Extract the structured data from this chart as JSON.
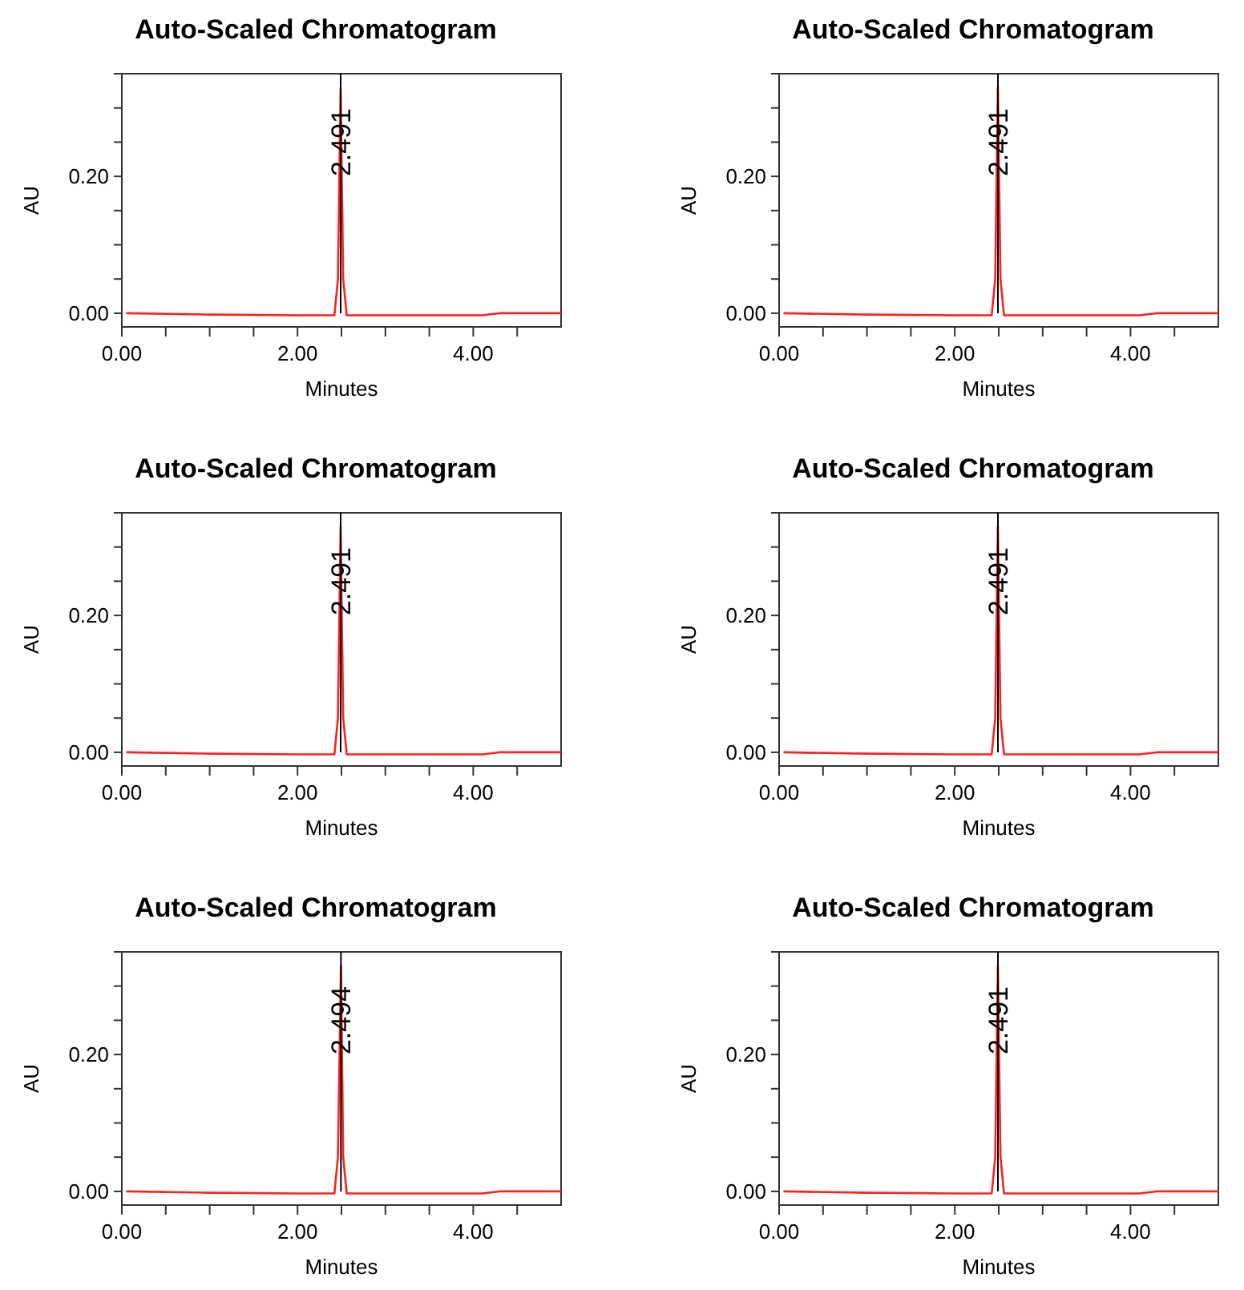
{
  "chart_data": [
    {
      "type": "line",
      "title": "Auto-Scaled Chromatogram",
      "xlabel": "Minutes",
      "ylabel": "AU",
      "x": [
        0.05,
        1.0,
        2.0,
        2.42,
        2.46,
        2.49,
        2.52,
        2.56,
        3.0,
        4.1,
        4.3,
        5.0
      ],
      "series": [
        {
          "color": "#ff2020",
          "values": [
            0,
            -0.002,
            -0.003,
            -0.003,
            0.05,
            0.33,
            0.05,
            -0.003,
            -0.003,
            -0.003,
            0,
            0
          ]
        }
      ],
      "xlim": [
        0,
        5
      ],
      "ylim": [
        -0.02,
        0.35
      ],
      "xticks": [
        {
          "value": 0,
          "label": "0.00"
        },
        {
          "value": 0.5,
          "label": null
        },
        {
          "value": 1,
          "label": null
        },
        {
          "value": 1.5,
          "label": null
        },
        {
          "value": 2,
          "label": "2.00"
        },
        {
          "value": 2.5,
          "label": null
        },
        {
          "value": 3,
          "label": null
        },
        {
          "value": 3.5,
          "label": null
        },
        {
          "value": 4,
          "label": "4.00"
        },
        {
          "value": 4.5,
          "label": null
        }
      ],
      "yticks": [
        {
          "value": 0,
          "label": "0.00"
        },
        {
          "value": 0.05,
          "label": null
        },
        {
          "value": 0.1,
          "label": null
        },
        {
          "value": 0.15,
          "label": null
        },
        {
          "value": 0.2,
          "label": "0.20"
        },
        {
          "value": 0.25,
          "label": null
        },
        {
          "value": 0.3,
          "label": null
        },
        {
          "value": 0.35,
          "label": null
        }
      ],
      "ref_lines": [
        {
          "axis": "x",
          "value": 2.491,
          "label": "2.491",
          "color": "#000000"
        }
      ]
    },
    {
      "type": "line",
      "title": "Auto-Scaled Chromatogram",
      "xlabel": "Minutes",
      "ylabel": "AU",
      "x": [
        0.05,
        1.0,
        2.0,
        2.42,
        2.46,
        2.49,
        2.52,
        2.56,
        3.0,
        4.1,
        4.3,
        5.0
      ],
      "series": [
        {
          "color": "#ff2020",
          "values": [
            0,
            -0.002,
            -0.003,
            -0.003,
            0.05,
            0.33,
            0.05,
            -0.003,
            -0.003,
            -0.003,
            0,
            0
          ]
        }
      ],
      "xlim": [
        0,
        5
      ],
      "ylim": [
        -0.02,
        0.35
      ],
      "xticks": [
        {
          "value": 0,
          "label": "0.00"
        },
        {
          "value": 0.5,
          "label": null
        },
        {
          "value": 1,
          "label": null
        },
        {
          "value": 1.5,
          "label": null
        },
        {
          "value": 2,
          "label": "2.00"
        },
        {
          "value": 2.5,
          "label": null
        },
        {
          "value": 3,
          "label": null
        },
        {
          "value": 3.5,
          "label": null
        },
        {
          "value": 4,
          "label": "4.00"
        },
        {
          "value": 4.5,
          "label": null
        }
      ],
      "yticks": [
        {
          "value": 0,
          "label": "0.00"
        },
        {
          "value": 0.05,
          "label": null
        },
        {
          "value": 0.1,
          "label": null
        },
        {
          "value": 0.15,
          "label": null
        },
        {
          "value": 0.2,
          "label": "0.20"
        },
        {
          "value": 0.25,
          "label": null
        },
        {
          "value": 0.3,
          "label": null
        },
        {
          "value": 0.35,
          "label": null
        }
      ],
      "ref_lines": [
        {
          "axis": "x",
          "value": 2.491,
          "label": "2.491",
          "color": "#000000"
        }
      ]
    },
    {
      "type": "line",
      "title": "Auto-Scaled Chromatogram",
      "xlabel": "Minutes",
      "ylabel": "AU",
      "x": [
        0.05,
        1.0,
        2.0,
        2.42,
        2.46,
        2.49,
        2.52,
        2.56,
        3.0,
        4.1,
        4.3,
        5.0
      ],
      "series": [
        {
          "color": "#ff2020",
          "values": [
            0,
            -0.002,
            -0.003,
            -0.003,
            0.05,
            0.33,
            0.05,
            -0.003,
            -0.003,
            -0.003,
            0,
            0
          ]
        }
      ],
      "xlim": [
        0,
        5
      ],
      "ylim": [
        -0.02,
        0.35
      ],
      "xticks": [
        {
          "value": 0,
          "label": "0.00"
        },
        {
          "value": 0.5,
          "label": null
        },
        {
          "value": 1,
          "label": null
        },
        {
          "value": 1.5,
          "label": null
        },
        {
          "value": 2,
          "label": "2.00"
        },
        {
          "value": 2.5,
          "label": null
        },
        {
          "value": 3,
          "label": null
        },
        {
          "value": 3.5,
          "label": null
        },
        {
          "value": 4,
          "label": "4.00"
        },
        {
          "value": 4.5,
          "label": null
        }
      ],
      "yticks": [
        {
          "value": 0,
          "label": "0.00"
        },
        {
          "value": 0.05,
          "label": null
        },
        {
          "value": 0.1,
          "label": null
        },
        {
          "value": 0.15,
          "label": null
        },
        {
          "value": 0.2,
          "label": "0.20"
        },
        {
          "value": 0.25,
          "label": null
        },
        {
          "value": 0.3,
          "label": null
        },
        {
          "value": 0.35,
          "label": null
        }
      ],
      "ref_lines": [
        {
          "axis": "x",
          "value": 2.491,
          "label": "2.491",
          "color": "#000000"
        }
      ]
    },
    {
      "type": "line",
      "title": "Auto-Scaled Chromatogram",
      "xlabel": "Minutes",
      "ylabel": "AU",
      "x": [
        0.05,
        1.0,
        2.0,
        2.42,
        2.46,
        2.49,
        2.52,
        2.56,
        3.0,
        4.1,
        4.3,
        5.0
      ],
      "series": [
        {
          "color": "#ff2020",
          "values": [
            0,
            -0.002,
            -0.003,
            -0.003,
            0.05,
            0.33,
            0.05,
            -0.003,
            -0.003,
            -0.003,
            0,
            0
          ]
        }
      ],
      "xlim": [
        0,
        5
      ],
      "ylim": [
        -0.02,
        0.35
      ],
      "xticks": [
        {
          "value": 0,
          "label": "0.00"
        },
        {
          "value": 0.5,
          "label": null
        },
        {
          "value": 1,
          "label": null
        },
        {
          "value": 1.5,
          "label": null
        },
        {
          "value": 2,
          "label": "2.00"
        },
        {
          "value": 2.5,
          "label": null
        },
        {
          "value": 3,
          "label": null
        },
        {
          "value": 3.5,
          "label": null
        },
        {
          "value": 4,
          "label": "4.00"
        },
        {
          "value": 4.5,
          "label": null
        }
      ],
      "yticks": [
        {
          "value": 0,
          "label": "0.00"
        },
        {
          "value": 0.05,
          "label": null
        },
        {
          "value": 0.1,
          "label": null
        },
        {
          "value": 0.15,
          "label": null
        },
        {
          "value": 0.2,
          "label": "0.20"
        },
        {
          "value": 0.25,
          "label": null
        },
        {
          "value": 0.3,
          "label": null
        },
        {
          "value": 0.35,
          "label": null
        }
      ],
      "ref_lines": [
        {
          "axis": "x",
          "value": 2.491,
          "label": "2.491",
          "color": "#000000"
        }
      ]
    },
    {
      "type": "line",
      "title": "Auto-Scaled Chromatogram",
      "xlabel": "Minutes",
      "ylabel": "AU",
      "x": [
        0.05,
        1.0,
        2.0,
        2.42,
        2.46,
        2.494,
        2.52,
        2.56,
        3.0,
        4.1,
        4.3,
        5.0
      ],
      "series": [
        {
          "color": "#ff2020",
          "values": [
            0,
            -0.002,
            -0.003,
            -0.003,
            0.05,
            0.33,
            0.05,
            -0.003,
            -0.003,
            -0.003,
            0,
            0
          ]
        }
      ],
      "xlim": [
        0,
        5
      ],
      "ylim": [
        -0.02,
        0.35
      ],
      "xticks": [
        {
          "value": 0,
          "label": "0.00"
        },
        {
          "value": 0.5,
          "label": null
        },
        {
          "value": 1,
          "label": null
        },
        {
          "value": 1.5,
          "label": null
        },
        {
          "value": 2,
          "label": "2.00"
        },
        {
          "value": 2.5,
          "label": null
        },
        {
          "value": 3,
          "label": null
        },
        {
          "value": 3.5,
          "label": null
        },
        {
          "value": 4,
          "label": "4.00"
        },
        {
          "value": 4.5,
          "label": null
        }
      ],
      "yticks": [
        {
          "value": 0,
          "label": "0.00"
        },
        {
          "value": 0.05,
          "label": null
        },
        {
          "value": 0.1,
          "label": null
        },
        {
          "value": 0.15,
          "label": null
        },
        {
          "value": 0.2,
          "label": "0.20"
        },
        {
          "value": 0.25,
          "label": null
        },
        {
          "value": 0.3,
          "label": null
        },
        {
          "value": 0.35,
          "label": null
        }
      ],
      "ref_lines": [
        {
          "axis": "x",
          "value": 2.494,
          "label": "2.494",
          "color": "#000000"
        }
      ]
    },
    {
      "type": "line",
      "title": "Auto-Scaled Chromatogram",
      "xlabel": "Minutes",
      "ylabel": "AU",
      "x": [
        0.05,
        1.0,
        2.0,
        2.42,
        2.46,
        2.49,
        2.52,
        2.56,
        3.0,
        4.1,
        4.3,
        5.0
      ],
      "series": [
        {
          "color": "#ff2020",
          "values": [
            0,
            -0.002,
            -0.003,
            -0.003,
            0.05,
            0.33,
            0.05,
            -0.003,
            -0.003,
            -0.003,
            0,
            0
          ]
        }
      ],
      "xlim": [
        0,
        5
      ],
      "ylim": [
        -0.02,
        0.35
      ],
      "xticks": [
        {
          "value": 0,
          "label": "0.00"
        },
        {
          "value": 0.5,
          "label": null
        },
        {
          "value": 1,
          "label": null
        },
        {
          "value": 1.5,
          "label": null
        },
        {
          "value": 2,
          "label": "2.00"
        },
        {
          "value": 2.5,
          "label": null
        },
        {
          "value": 3,
          "label": null
        },
        {
          "value": 3.5,
          "label": null
        },
        {
          "value": 4,
          "label": "4.00"
        },
        {
          "value": 4.5,
          "label": null
        }
      ],
      "yticks": [
        {
          "value": 0,
          "label": "0.00"
        },
        {
          "value": 0.05,
          "label": null
        },
        {
          "value": 0.1,
          "label": null
        },
        {
          "value": 0.15,
          "label": null
        },
        {
          "value": 0.2,
          "label": "0.20"
        },
        {
          "value": 0.25,
          "label": null
        },
        {
          "value": 0.3,
          "label": null
        },
        {
          "value": 0.35,
          "label": null
        }
      ],
      "ref_lines": [
        {
          "axis": "x",
          "value": 2.491,
          "label": "2.491",
          "color": "#000000"
        }
      ]
    }
  ]
}
